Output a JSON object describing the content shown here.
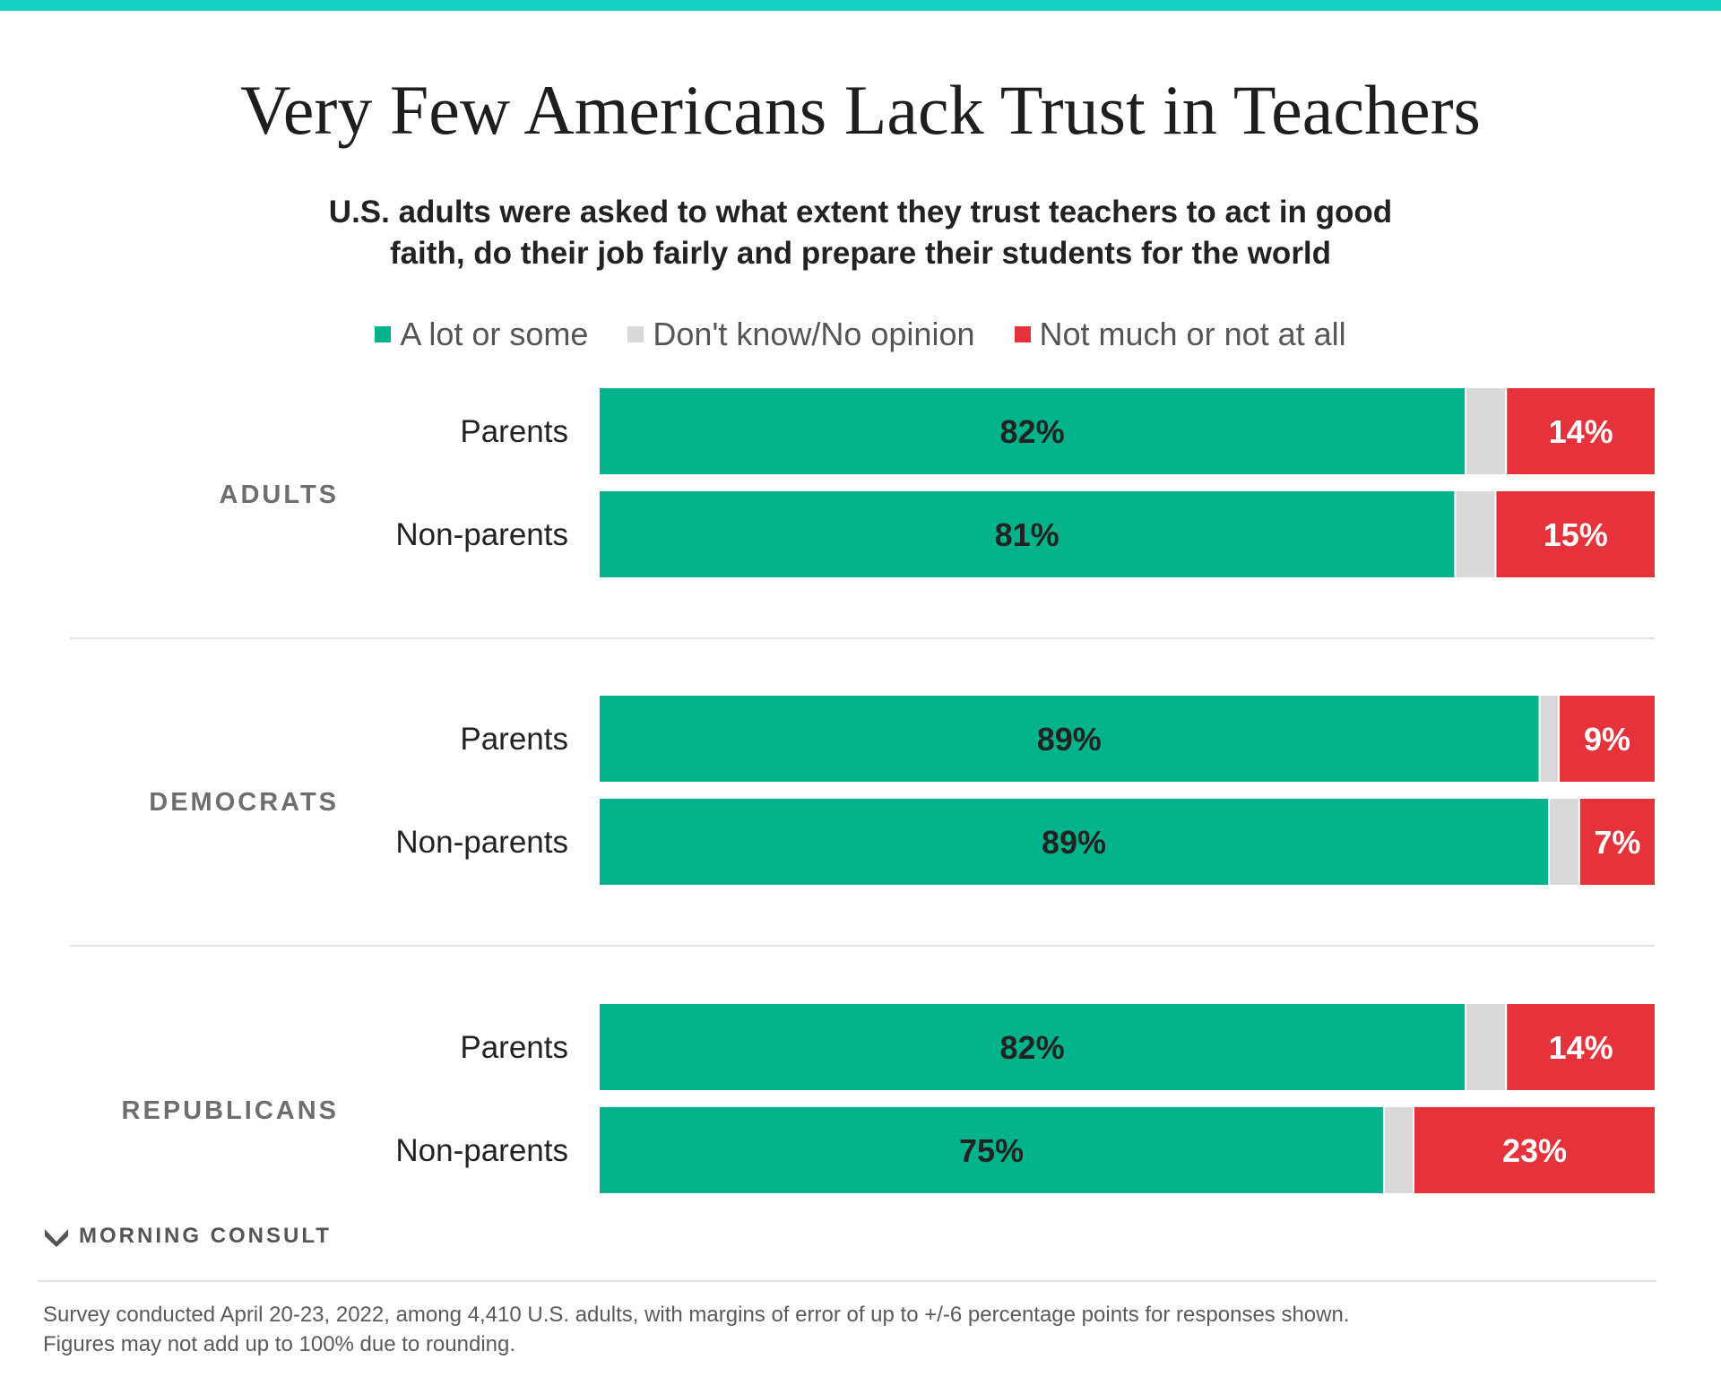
{
  "title": "Very Few Americans Lack Trust in Teachers",
  "subtitle": "U.S. adults were asked to what extent they trust teachers to act in good faith, do their job fairly and prepare their students for the world",
  "legend": [
    {
      "label": "A lot or some",
      "color": "#00b38a"
    },
    {
      "label": "Don't know/No opinion",
      "color": "#d9d9d9"
    },
    {
      "label": "Not much or not at all",
      "color": "#e6323b"
    }
  ],
  "colors": {
    "accent_bar": "#14d1c1",
    "trust": "#00b38a",
    "unsure": "#d9d9d9",
    "distrust": "#e6323b"
  },
  "chart_data": {
    "type": "bar",
    "orientation": "horizontal",
    "stacked": true,
    "series": [
      {
        "name": "A lot or some",
        "values": [
          82,
          81,
          89,
          89,
          82,
          75
        ]
      },
      {
        "name": "Don't know/No opinion",
        "values": [
          4,
          4,
          2,
          3,
          4,
          3
        ]
      },
      {
        "name": "Not much or not at all",
        "values": [
          14,
          15,
          9,
          7,
          14,
          23
        ]
      }
    ],
    "groups": [
      {
        "label": "ADULTS",
        "rows": [
          {
            "label": "Parents",
            "trust": 82,
            "unsure": 4,
            "distrust": 14,
            "trust_label": "82%",
            "distrust_label": "14%"
          },
          {
            "label": "Non-parents",
            "trust": 81,
            "unsure": 4,
            "distrust": 15,
            "trust_label": "81%",
            "distrust_label": "15%"
          }
        ]
      },
      {
        "label": "DEMOCRATS",
        "rows": [
          {
            "label": "Parents",
            "trust": 89,
            "unsure": 2,
            "distrust": 9,
            "trust_label": "89%",
            "distrust_label": "9%"
          },
          {
            "label": "Non-parents",
            "trust": 89,
            "unsure": 3,
            "distrust": 7,
            "trust_label": "89%",
            "distrust_label": "7%"
          }
        ]
      },
      {
        "label": "REPUBLICANS",
        "rows": [
          {
            "label": "Parents",
            "trust": 82,
            "unsure": 4,
            "distrust": 14,
            "trust_label": "82%",
            "distrust_label": "14%"
          },
          {
            "label": "Non-parents",
            "trust": 75,
            "unsure": 3,
            "distrust": 23,
            "trust_label": "75%",
            "distrust_label": "23%"
          }
        ]
      }
    ],
    "legend_position": "top"
  },
  "brand": {
    "name": "MORNING CONSULT",
    "icon": "morning-consult-logo"
  },
  "notes": [
    "Survey conducted April 20-23, 2022, among 4,410 U.S. adults, with margins of error of up to +/-6 percentage points for responses shown.",
    "Figures may not add up to 100% due to rounding."
  ]
}
